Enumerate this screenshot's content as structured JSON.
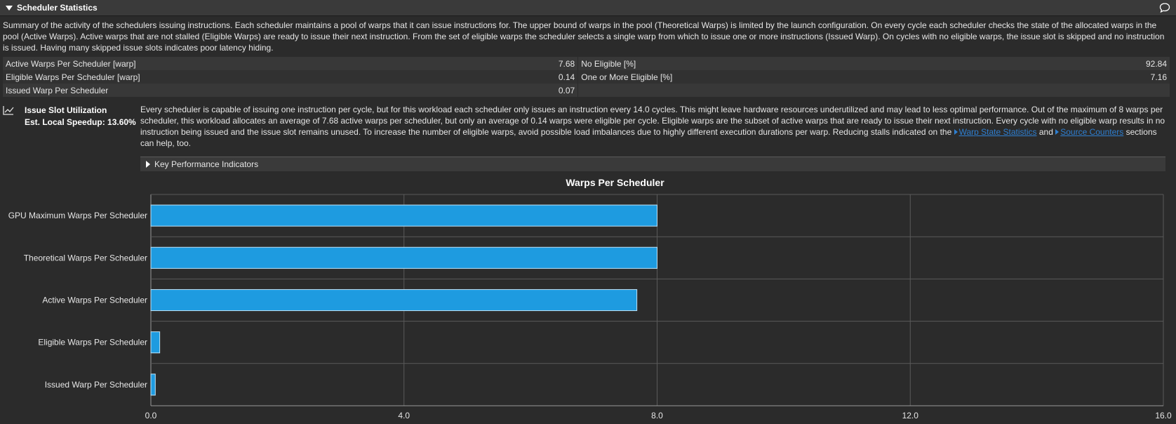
{
  "section": {
    "title": "Scheduler Statistics",
    "summary": "Summary of the activity of the schedulers issuing instructions. Each scheduler maintains a pool of warps that it can issue instructions for. The upper bound of warps in the pool (Theoretical Warps) is limited by the launch configuration. On every cycle each scheduler checks the state of the allocated warps in the pool (Active Warps). Active warps that are not stalled (Eligible Warps) are ready to issue their next instruction. From the set of eligible warps the scheduler selects a single warp from which to issue one or more instructions (Issued Warp). On cycles with no eligible warps, the issue slot is skipped and no instruction is issued. Having many skipped issue slots indicates poor latency hiding."
  },
  "metrics": [
    {
      "left_label": "Active Warps Per Scheduler [warp]",
      "left_value": "7.68",
      "right_label": "No Eligible [%]",
      "right_value": "92.84"
    },
    {
      "left_label": "Eligible Warps Per Scheduler [warp]",
      "left_value": "0.14",
      "right_label": "One or More Eligible [%]",
      "right_value": "7.16"
    },
    {
      "left_label": "Issued Warp Per Scheduler",
      "left_value": "0.07",
      "right_label": "",
      "right_value": ""
    }
  ],
  "rule": {
    "title": "Issue Slot Utilization",
    "speedup": "Est. Local Speedup: 13.60%",
    "body_part1": "Every scheduler is capable of issuing one instruction per cycle, but for this workload each scheduler only issues an instruction every 14.0 cycles. This might leave hardware resources underutilized and may lead to less optimal performance. Out of the maximum of 8 warps per scheduler, this workload allocates an average of 7.68 active warps per scheduler, but only an average of 0.14 warps were eligible per cycle. Eligible warps are the subset of active warps that are ready to issue their next instruction. Every cycle with no eligible warp results in no instruction being issued and the issue slot remains unused. To increase the number of eligible warps, avoid possible load imbalances due to highly different execution durations per warp. Reducing stalls indicated on the ",
    "link1": "Warp State Statistics",
    "body_and": " and ",
    "link2": "Source Counters",
    "body_part2": " sections can help, too."
  },
  "kpi": {
    "label": "Key Performance Indicators"
  },
  "colors": {
    "bar": "#1e9be0",
    "bar_border": "#bfe3f7",
    "grid": "#5a5a5a",
    "background": "#2b2b2b"
  },
  "chart_data": {
    "type": "bar",
    "orientation": "horizontal",
    "title": "Warps Per Scheduler",
    "categories": [
      "GPU Maximum Warps Per Scheduler",
      "Theoretical Warps Per Scheduler",
      "Active Warps Per Scheduler",
      "Eligible Warps Per Scheduler",
      "Issued Warp Per Scheduler"
    ],
    "values": [
      8.0,
      8.0,
      7.68,
      0.14,
      0.07
    ],
    "xlim": [
      0,
      16
    ],
    "xticks": [
      "0.0",
      "4.0",
      "8.0",
      "12.0",
      "16.0"
    ],
    "xtick_values": [
      0,
      4,
      8,
      12,
      16
    ],
    "grid": true
  }
}
